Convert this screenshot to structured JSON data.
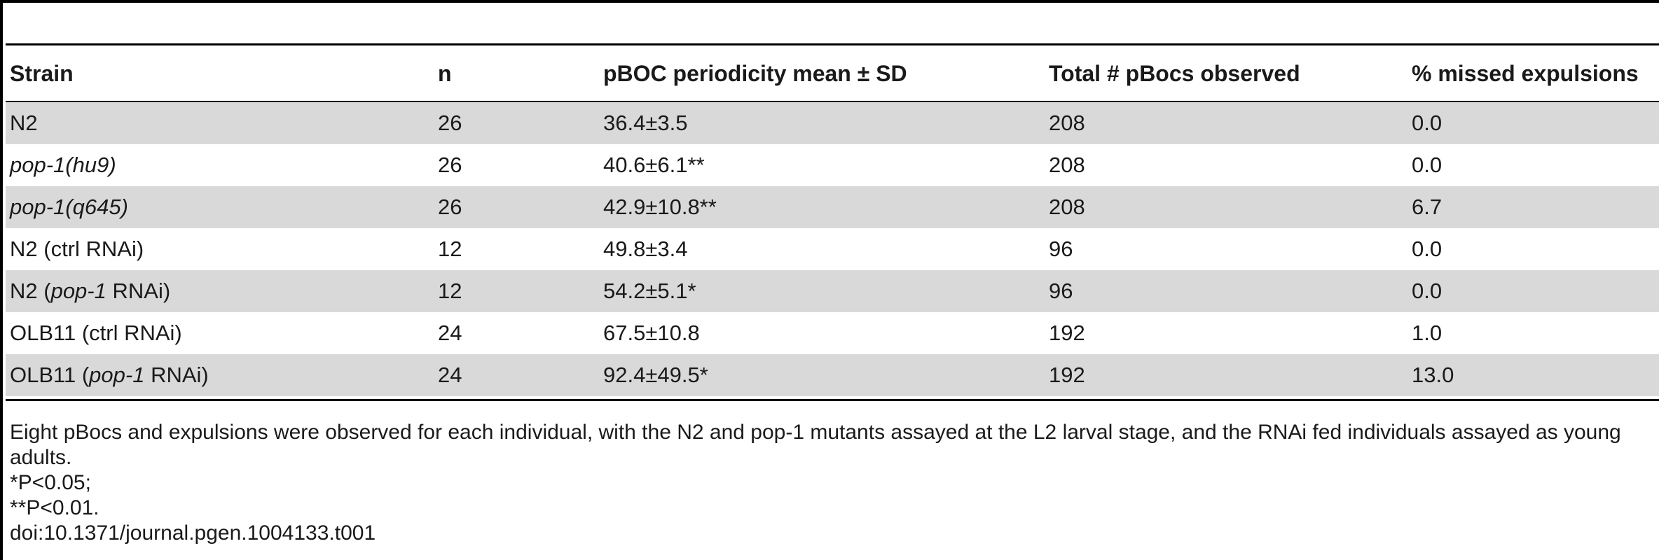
{
  "table": {
    "headers": [
      "Strain",
      "n",
      "pBOC periodicity mean ± SD",
      "Total # pBocs observed",
      "% missed expulsions"
    ],
    "rows": [
      {
        "strain_pre": "",
        "strain_it": "",
        "strain_post": "N2",
        "n": "26",
        "mean": "36.4±3.5",
        "total": "208",
        "missed": "0.0"
      },
      {
        "strain_pre": "",
        "strain_it": "pop-1(hu9)",
        "strain_post": "",
        "n": "26",
        "mean": "40.6±6.1**",
        "total": "208",
        "missed": "0.0"
      },
      {
        "strain_pre": "",
        "strain_it": "pop-1(q645)",
        "strain_post": "",
        "n": "26",
        "mean": "42.9±10.8**",
        "total": "208",
        "missed": "6.7"
      },
      {
        "strain_pre": "N2 (ctrl RNAi)",
        "strain_it": "",
        "strain_post": "",
        "n": "12",
        "mean": "49.8±3.4",
        "total": "96",
        "missed": "0.0"
      },
      {
        "strain_pre": "N2 (",
        "strain_it": "pop-1",
        "strain_post": " RNAi)",
        "n": "12",
        "mean": "54.2±5.1*",
        "total": "96",
        "missed": "0.0"
      },
      {
        "strain_pre": "OLB11 (ctrl RNAi)",
        "strain_it": "",
        "strain_post": "",
        "n": "24",
        "mean": "67.5±10.8",
        "total": "192",
        "missed": "1.0"
      },
      {
        "strain_pre": "OLB11 (",
        "strain_it": "pop-1",
        "strain_post": " RNAi)",
        "n": "24",
        "mean": "92.4±49.5*",
        "total": "192",
        "missed": "13.0"
      }
    ]
  },
  "notes": {
    "description": "Eight pBocs and expulsions were observed for each individual, with the N2 and pop-1 mutants assayed at the L2 larval stage, and the RNAi fed individuals assayed as young adults.",
    "p1": "*P<0.05;",
    "p2": "**P<0.01.",
    "doi": "doi:10.1371/journal.pgen.1004133.t001"
  }
}
